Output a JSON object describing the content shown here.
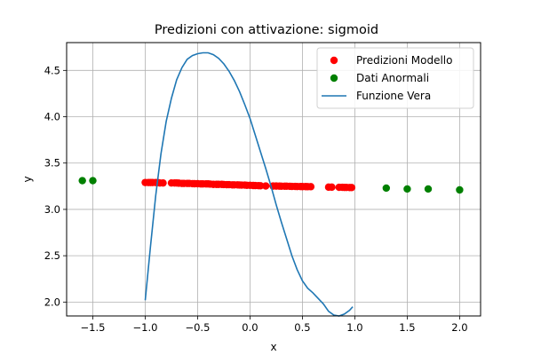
{
  "chart_data": {
    "type": "scatter",
    "title": "Predizioni con attivazione: sigmoid",
    "xlabel": "x",
    "ylabel": "y",
    "xlim": [
      -1.75,
      2.2
    ],
    "ylim": [
      1.85,
      4.8
    ],
    "xticks": [
      -1.5,
      -1.0,
      -0.5,
      0.0,
      0.5,
      1.0,
      1.5,
      2.0
    ],
    "xtick_labels": [
      "−1.5",
      "−1.0",
      "−0.5",
      "0.0",
      "0.5",
      "1.0",
      "1.5",
      "2.0"
    ],
    "yticks": [
      2.0,
      2.5,
      3.0,
      3.5,
      4.0,
      4.5
    ],
    "ytick_labels": [
      "2.0",
      "2.5",
      "3.0",
      "3.5",
      "4.0",
      "4.5"
    ],
    "grid": true,
    "legend_position": "top-right",
    "series": [
      {
        "name": "Predizioni Modello",
        "kind": "scatter",
        "color": "#ff0000",
        "x": [
          -1.0,
          -0.97,
          -0.95,
          -0.93,
          -0.9,
          -0.88,
          -0.86,
          -0.83,
          -0.75,
          -0.72,
          -0.7,
          -0.68,
          -0.65,
          -0.63,
          -0.6,
          -0.58,
          -0.55,
          -0.53,
          -0.5,
          -0.47,
          -0.45,
          -0.42,
          -0.4,
          -0.38,
          -0.35,
          -0.32,
          -0.3,
          -0.27,
          -0.25,
          -0.22,
          -0.2,
          -0.17,
          -0.15,
          -0.12,
          -0.1,
          -0.08,
          -0.05,
          -0.03,
          0.0,
          0.03,
          0.05,
          0.08,
          0.1,
          0.15,
          0.22,
          0.25,
          0.28,
          0.3,
          0.33,
          0.35,
          0.38,
          0.4,
          0.43,
          0.45,
          0.48,
          0.5,
          0.53,
          0.55,
          0.58,
          0.75,
          0.78,
          0.85,
          0.88,
          0.9,
          0.92,
          0.95,
          0.97
        ],
        "y": [
          3.29,
          3.29,
          3.29,
          3.29,
          3.29,
          3.29,
          3.285,
          3.285,
          3.285,
          3.285,
          3.285,
          3.283,
          3.28,
          3.28,
          3.28,
          3.28,
          3.278,
          3.277,
          3.277,
          3.275,
          3.275,
          3.275,
          3.275,
          3.273,
          3.27,
          3.27,
          3.27,
          3.27,
          3.268,
          3.267,
          3.267,
          3.265,
          3.265,
          3.265,
          3.263,
          3.262,
          3.262,
          3.26,
          3.26,
          3.258,
          3.257,
          3.256,
          3.255,
          3.253,
          3.252,
          3.252,
          3.251,
          3.25,
          3.25,
          3.25,
          3.249,
          3.248,
          3.248,
          3.247,
          3.247,
          3.246,
          3.246,
          3.245,
          3.245,
          3.24,
          3.24,
          3.238,
          3.238,
          3.237,
          3.237,
          3.236,
          3.236
        ]
      },
      {
        "name": "Dati Anormali",
        "kind": "scatter",
        "color": "#008000",
        "x": [
          -1.6,
          -1.5,
          1.3,
          1.5,
          1.7,
          2.0
        ],
        "y": [
          3.31,
          3.31,
          3.23,
          3.22,
          3.22,
          3.21
        ]
      },
      {
        "name": "Funzione Vera",
        "kind": "line",
        "color": "#1f77b4",
        "x": [
          -1.0,
          -0.95,
          -0.9,
          -0.85,
          -0.8,
          -0.75,
          -0.7,
          -0.65,
          -0.6,
          -0.55,
          -0.5,
          -0.45,
          -0.4,
          -0.35,
          -0.3,
          -0.25,
          -0.2,
          -0.15,
          -0.1,
          -0.05,
          0.0,
          0.05,
          0.1,
          0.15,
          0.2,
          0.25,
          0.3,
          0.35,
          0.4,
          0.45,
          0.5,
          0.55,
          0.6,
          0.65,
          0.7,
          0.75,
          0.8,
          0.85,
          0.9,
          0.95,
          0.98
        ],
        "y": [
          2.02,
          2.6,
          3.15,
          3.6,
          3.95,
          4.2,
          4.4,
          4.53,
          4.62,
          4.66,
          4.68,
          4.69,
          4.69,
          4.67,
          4.63,
          4.57,
          4.49,
          4.39,
          4.27,
          4.13,
          3.98,
          3.8,
          3.62,
          3.44,
          3.25,
          3.05,
          2.86,
          2.68,
          2.5,
          2.35,
          2.23,
          2.15,
          2.1,
          2.04,
          1.98,
          1.9,
          1.86,
          1.85,
          1.87,
          1.91,
          1.95
        ]
      }
    ]
  }
}
